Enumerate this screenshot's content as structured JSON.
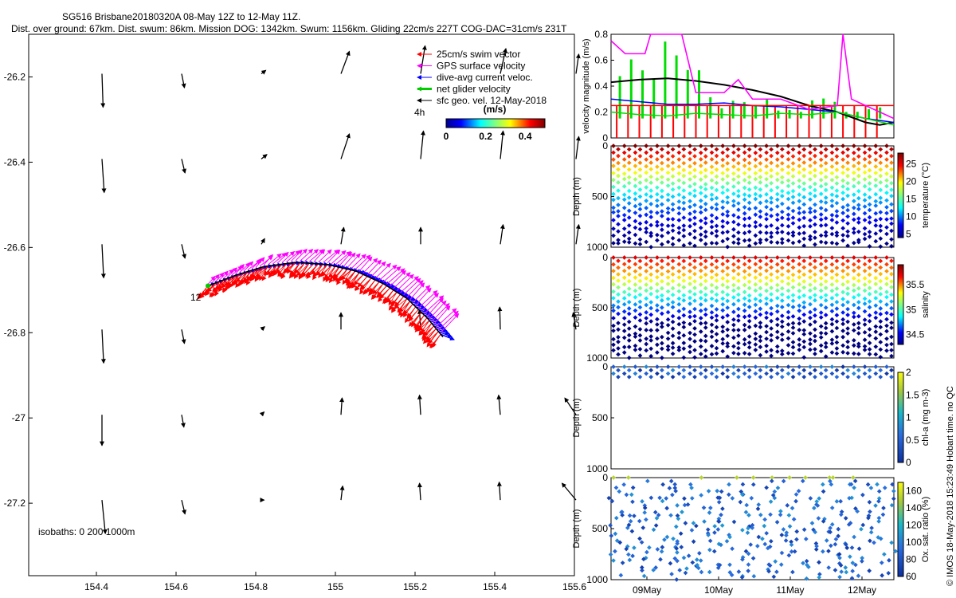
{
  "title": {
    "line1": "SG516 Brisbane20180320A 08-May 12Z to 12-May 11Z.",
    "line2": "Dist. over ground: 67km. Dist. swum: 86km. Mission DOG: 1342km. Swum: 1156km. Gliding 22cm/s 227T COG-DAC=31cm/s 231T"
  },
  "side_label": "© IMOS 18-May-2018 15:23:49 Hobart time. no QC",
  "colors": {
    "swim": "#ff0000",
    "gps": "#ff00ff",
    "dac": "#0000ff",
    "net": "#00cc00",
    "sfc": "#000000"
  },
  "chart_data": [
    {
      "type": "scatter",
      "name": "map",
      "x_ticks": [
        "154.4",
        "154.6",
        "154.8",
        "155",
        "155.2",
        "155.4",
        "155.6"
      ],
      "y_ticks": [
        "-26.2",
        "-26.4",
        "-26.6",
        "-26.8",
        "-27",
        "-27.2"
      ],
      "xlim": [
        154.23,
        155.6
      ],
      "ylim": [
        -27.37,
        -26.1
      ],
      "legend": [
        {
          "label": "25cm/s swim vector",
          "color": "#ff0000"
        },
        {
          "label": "GPS surface velocity",
          "color": "#ff00ff"
        },
        {
          "label": "dive-avg current veloc.",
          "color": "#0000ff"
        },
        {
          "label": "net glider velocity",
          "color": "#00cc00"
        },
        {
          "label": "sfc geo. vel. 12-May-2018",
          "color": "#000000"
        }
      ],
      "legend_note": "4h",
      "colorbar": {
        "label": "(m/s)",
        "ticks": [
          "0",
          "0.2",
          "0.4"
        ],
        "range": [
          0,
          0.5
        ]
      },
      "track_label": "12",
      "isobaths_label": "isobaths: 0   200   1000m",
      "track": [
        [
          154.68,
          -26.69
        ],
        [
          154.75,
          -26.665
        ],
        [
          154.82,
          -26.645
        ],
        [
          154.9,
          -26.635
        ],
        [
          154.98,
          -26.64
        ],
        [
          155.05,
          -26.655
        ],
        [
          155.12,
          -26.685
        ],
        [
          155.18,
          -26.72
        ],
        [
          155.23,
          -26.765
        ],
        [
          155.27,
          -26.81
        ]
      ],
      "geo_grid": {
        "lons": [
          154.41,
          154.61,
          154.81,
          155.01,
          155.21,
          155.41,
          155.6
        ],
        "lats": [
          -26.2,
          -26.4,
          -26.6,
          -26.8,
          -27.0,
          -27.2
        ],
        "vectors": [
          [
            [
              0.02,
              -0.6
            ],
            [
              0.05,
              -0.25
            ],
            [
              0.08,
              0.06
            ],
            [
              0.15,
              0.4
            ],
            [
              0.08,
              0.5
            ],
            [
              0.1,
              0.45
            ],
            [
              0.05,
              0.35
            ]
          ],
          [
            [
              0.04,
              -0.6
            ],
            [
              0.06,
              -0.25
            ],
            [
              0.1,
              0.08
            ],
            [
              0.15,
              0.45
            ],
            [
              0.05,
              0.5
            ],
            [
              0.05,
              0.5
            ],
            [
              0.05,
              0.4
            ]
          ],
          [
            [
              0.03,
              -0.6
            ],
            [
              0.06,
              -0.25
            ],
            [
              0.06,
              0.1
            ],
            [
              0.05,
              0.3
            ],
            [
              0.0,
              0.3
            ],
            [
              0.05,
              0.35
            ],
            [
              0.05,
              0.35
            ]
          ],
          [
            [
              0.03,
              -0.6
            ],
            [
              0.05,
              -0.25
            ],
            [
              0.06,
              0.05
            ],
            [
              0.0,
              0.3
            ],
            [
              -0.02,
              0.35
            ],
            [
              -0.01,
              0.4
            ],
            [
              -0.05,
              0.3
            ]
          ],
          [
            [
              0.0,
              -0.55
            ],
            [
              0.04,
              -0.22
            ],
            [
              0.05,
              0.05
            ],
            [
              0.02,
              0.3
            ],
            [
              -0.02,
              0.35
            ],
            [
              -0.03,
              0.35
            ],
            [
              -0.2,
              0.3
            ]
          ],
          [
            [
              0.06,
              -0.6
            ],
            [
              0.06,
              -0.25
            ],
            [
              0.05,
              0.0
            ],
            [
              0.03,
              0.25
            ],
            [
              -0.02,
              0.3
            ],
            [
              -0.02,
              0.32
            ],
            [
              -0.25,
              0.3
            ]
          ]
        ]
      }
    },
    {
      "type": "line",
      "name": "velocity",
      "ylabel": "velocity magnitude (m/s)",
      "y_ticks": [
        "0",
        "0.2",
        "0.4",
        "0.6",
        "0.8"
      ],
      "ylim": [
        0,
        0.8
      ],
      "xlim": [
        0,
        1
      ],
      "series": [
        {
          "color": "#000000",
          "x": [
            0,
            0.1,
            0.2,
            0.3,
            0.4,
            0.5,
            0.6,
            0.7,
            0.8,
            0.9,
            0.95,
            1.0
          ],
          "y": [
            0.43,
            0.45,
            0.46,
            0.44,
            0.41,
            0.37,
            0.32,
            0.25,
            0.2,
            0.12,
            0.1,
            0.12
          ]
        },
        {
          "color": "#0000ff",
          "x": [
            0,
            0.1,
            0.2,
            0.3,
            0.4,
            0.5,
            0.6,
            0.7,
            0.8,
            0.9,
            1.0
          ],
          "y": [
            0.3,
            0.28,
            0.26,
            0.26,
            0.27,
            0.25,
            0.24,
            0.22,
            0.2,
            0.15,
            0.12
          ]
        },
        {
          "color": "#ff0000",
          "x": [
            0,
            1
          ],
          "y": [
            0.25,
            0.25
          ]
        },
        {
          "color": "#00dd00",
          "x": [
            0,
            0.1,
            0.2,
            0.3,
            0.4,
            0.5,
            0.6,
            0.7,
            0.8,
            0.9,
            1.0
          ],
          "y": [
            0.2,
            0.18,
            0.17,
            0.19,
            0.18,
            0.17,
            0.19,
            0.18,
            0.2,
            0.15,
            0.1
          ]
        },
        {
          "color": "#ff00ff",
          "x": [
            0,
            0.05,
            0.12,
            0.14,
            0.2,
            0.25,
            0.3,
            0.4,
            0.45,
            0.5,
            0.6,
            0.7,
            0.8,
            0.82,
            0.85,
            0.9,
            1.0
          ],
          "y": [
            0.75,
            0.65,
            0.65,
            0.8,
            0.8,
            0.8,
            0.35,
            0.35,
            0.45,
            0.3,
            0.3,
            0.22,
            0.25,
            0.8,
            0.3,
            0.25,
            0.15
          ]
        }
      ]
    },
    {
      "type": "scatter",
      "name": "temperature",
      "ylabel": "Depth (m)",
      "y_ticks": [
        "0",
        "500",
        "1000"
      ],
      "ylim": [
        1000,
        0
      ],
      "colorbar": {
        "label": "temperature (°C)",
        "ticks": [
          "5",
          "10",
          "15",
          "20",
          "25"
        ],
        "range": [
          4,
          28
        ]
      },
      "profiles": 26,
      "max_depth": 1000
    },
    {
      "type": "scatter",
      "name": "salinity",
      "ylabel": "Depth (m)",
      "y_ticks": [
        "0",
        "500",
        "1000"
      ],
      "ylim": [
        1000,
        0
      ],
      "colorbar": {
        "label": "salinity",
        "ticks": [
          "34.5",
          "35",
          "35.5"
        ],
        "range": [
          34.3,
          35.9
        ]
      },
      "profiles": 26,
      "max_depth": 1000
    },
    {
      "type": "scatter",
      "name": "chla",
      "ylabel": "Depth (m)",
      "y_ticks": [
        "0",
        "500",
        "1000"
      ],
      "ylim": [
        1000,
        0
      ],
      "colorbar": {
        "label": "chl-a (mg m-3)",
        "ticks": [
          "0",
          "0.5",
          "1",
          "1.5",
          "2"
        ],
        "range": [
          0,
          2
        ]
      },
      "profiles": 26,
      "max_depth": 100
    },
    {
      "type": "scatter",
      "name": "oxygen",
      "ylabel": "Depth (m)",
      "y_ticks": [
        "0",
        "500",
        "1000"
      ],
      "ylim": [
        1000,
        0
      ],
      "x_ticks": [
        "09May",
        "10May",
        "11May",
        "12May"
      ],
      "colorbar": {
        "label": "Ox. sat. ratio (%)",
        "ticks": [
          "60",
          "80",
          "100",
          "120",
          "140",
          "160"
        ],
        "range": [
          60,
          170
        ]
      },
      "profiles": 26,
      "max_depth": 1000
    }
  ]
}
